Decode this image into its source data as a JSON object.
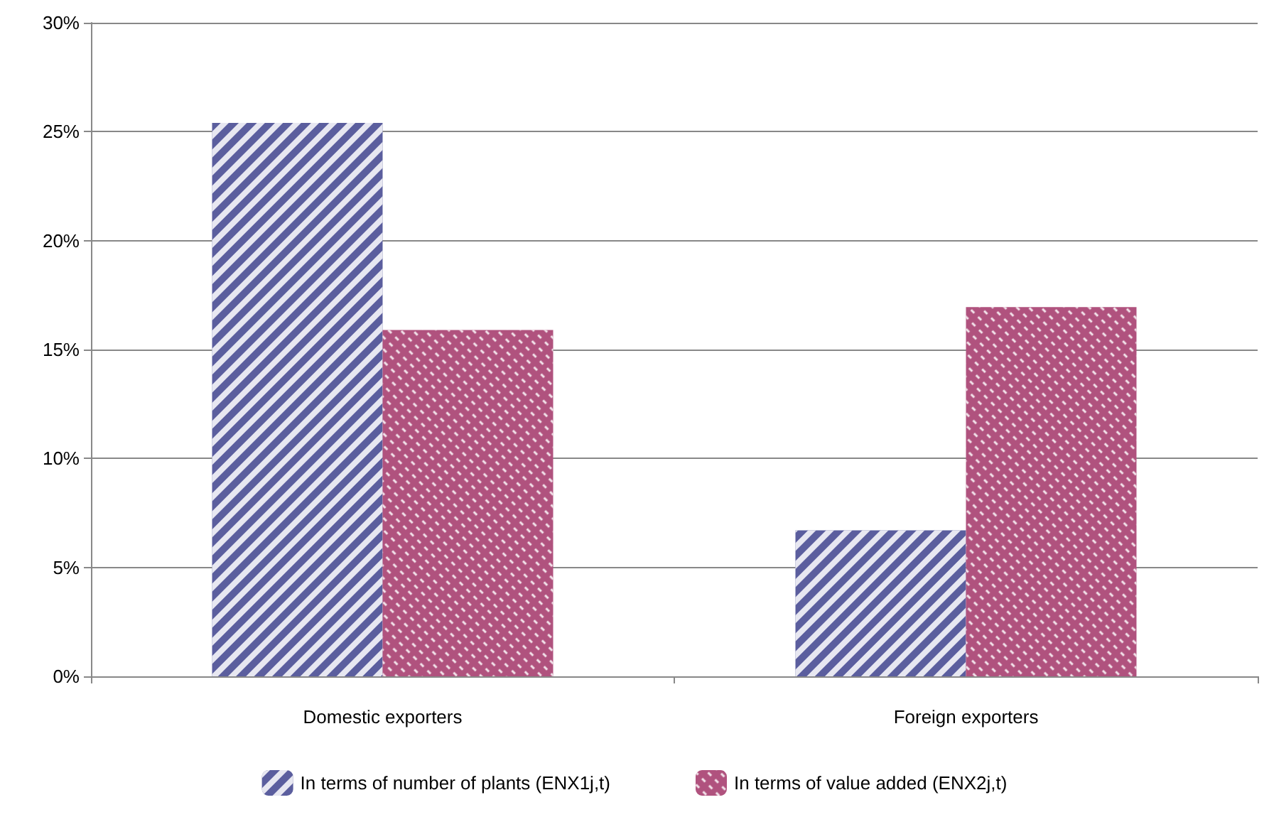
{
  "chart_data": {
    "type": "bar",
    "categories": [
      "Domestic exporters",
      "Foreign exporters"
    ],
    "series": [
      {
        "name": "In terms of number of plants (ENX1j,t)",
        "color": "#5b5e9e",
        "values": [
          25.4,
          6.7
        ]
      },
      {
        "name": "In terms of value added (ENX2j,t)",
        "color": "#b0527e",
        "values": [
          15.9,
          16.95
        ]
      }
    ],
    "ylim": [
      0,
      30
    ],
    "yticks": [
      {
        "value": 0,
        "label": "0%"
      },
      {
        "value": 5,
        "label": "5%"
      },
      {
        "value": 10,
        "label": "10%"
      },
      {
        "value": 15,
        "label": "15%"
      },
      {
        "value": 20,
        "label": "20%"
      },
      {
        "value": 25,
        "label": "25%"
      },
      {
        "value": 30,
        "label": "30%"
      }
    ],
    "grid": "y",
    "legend": "bottom"
  }
}
